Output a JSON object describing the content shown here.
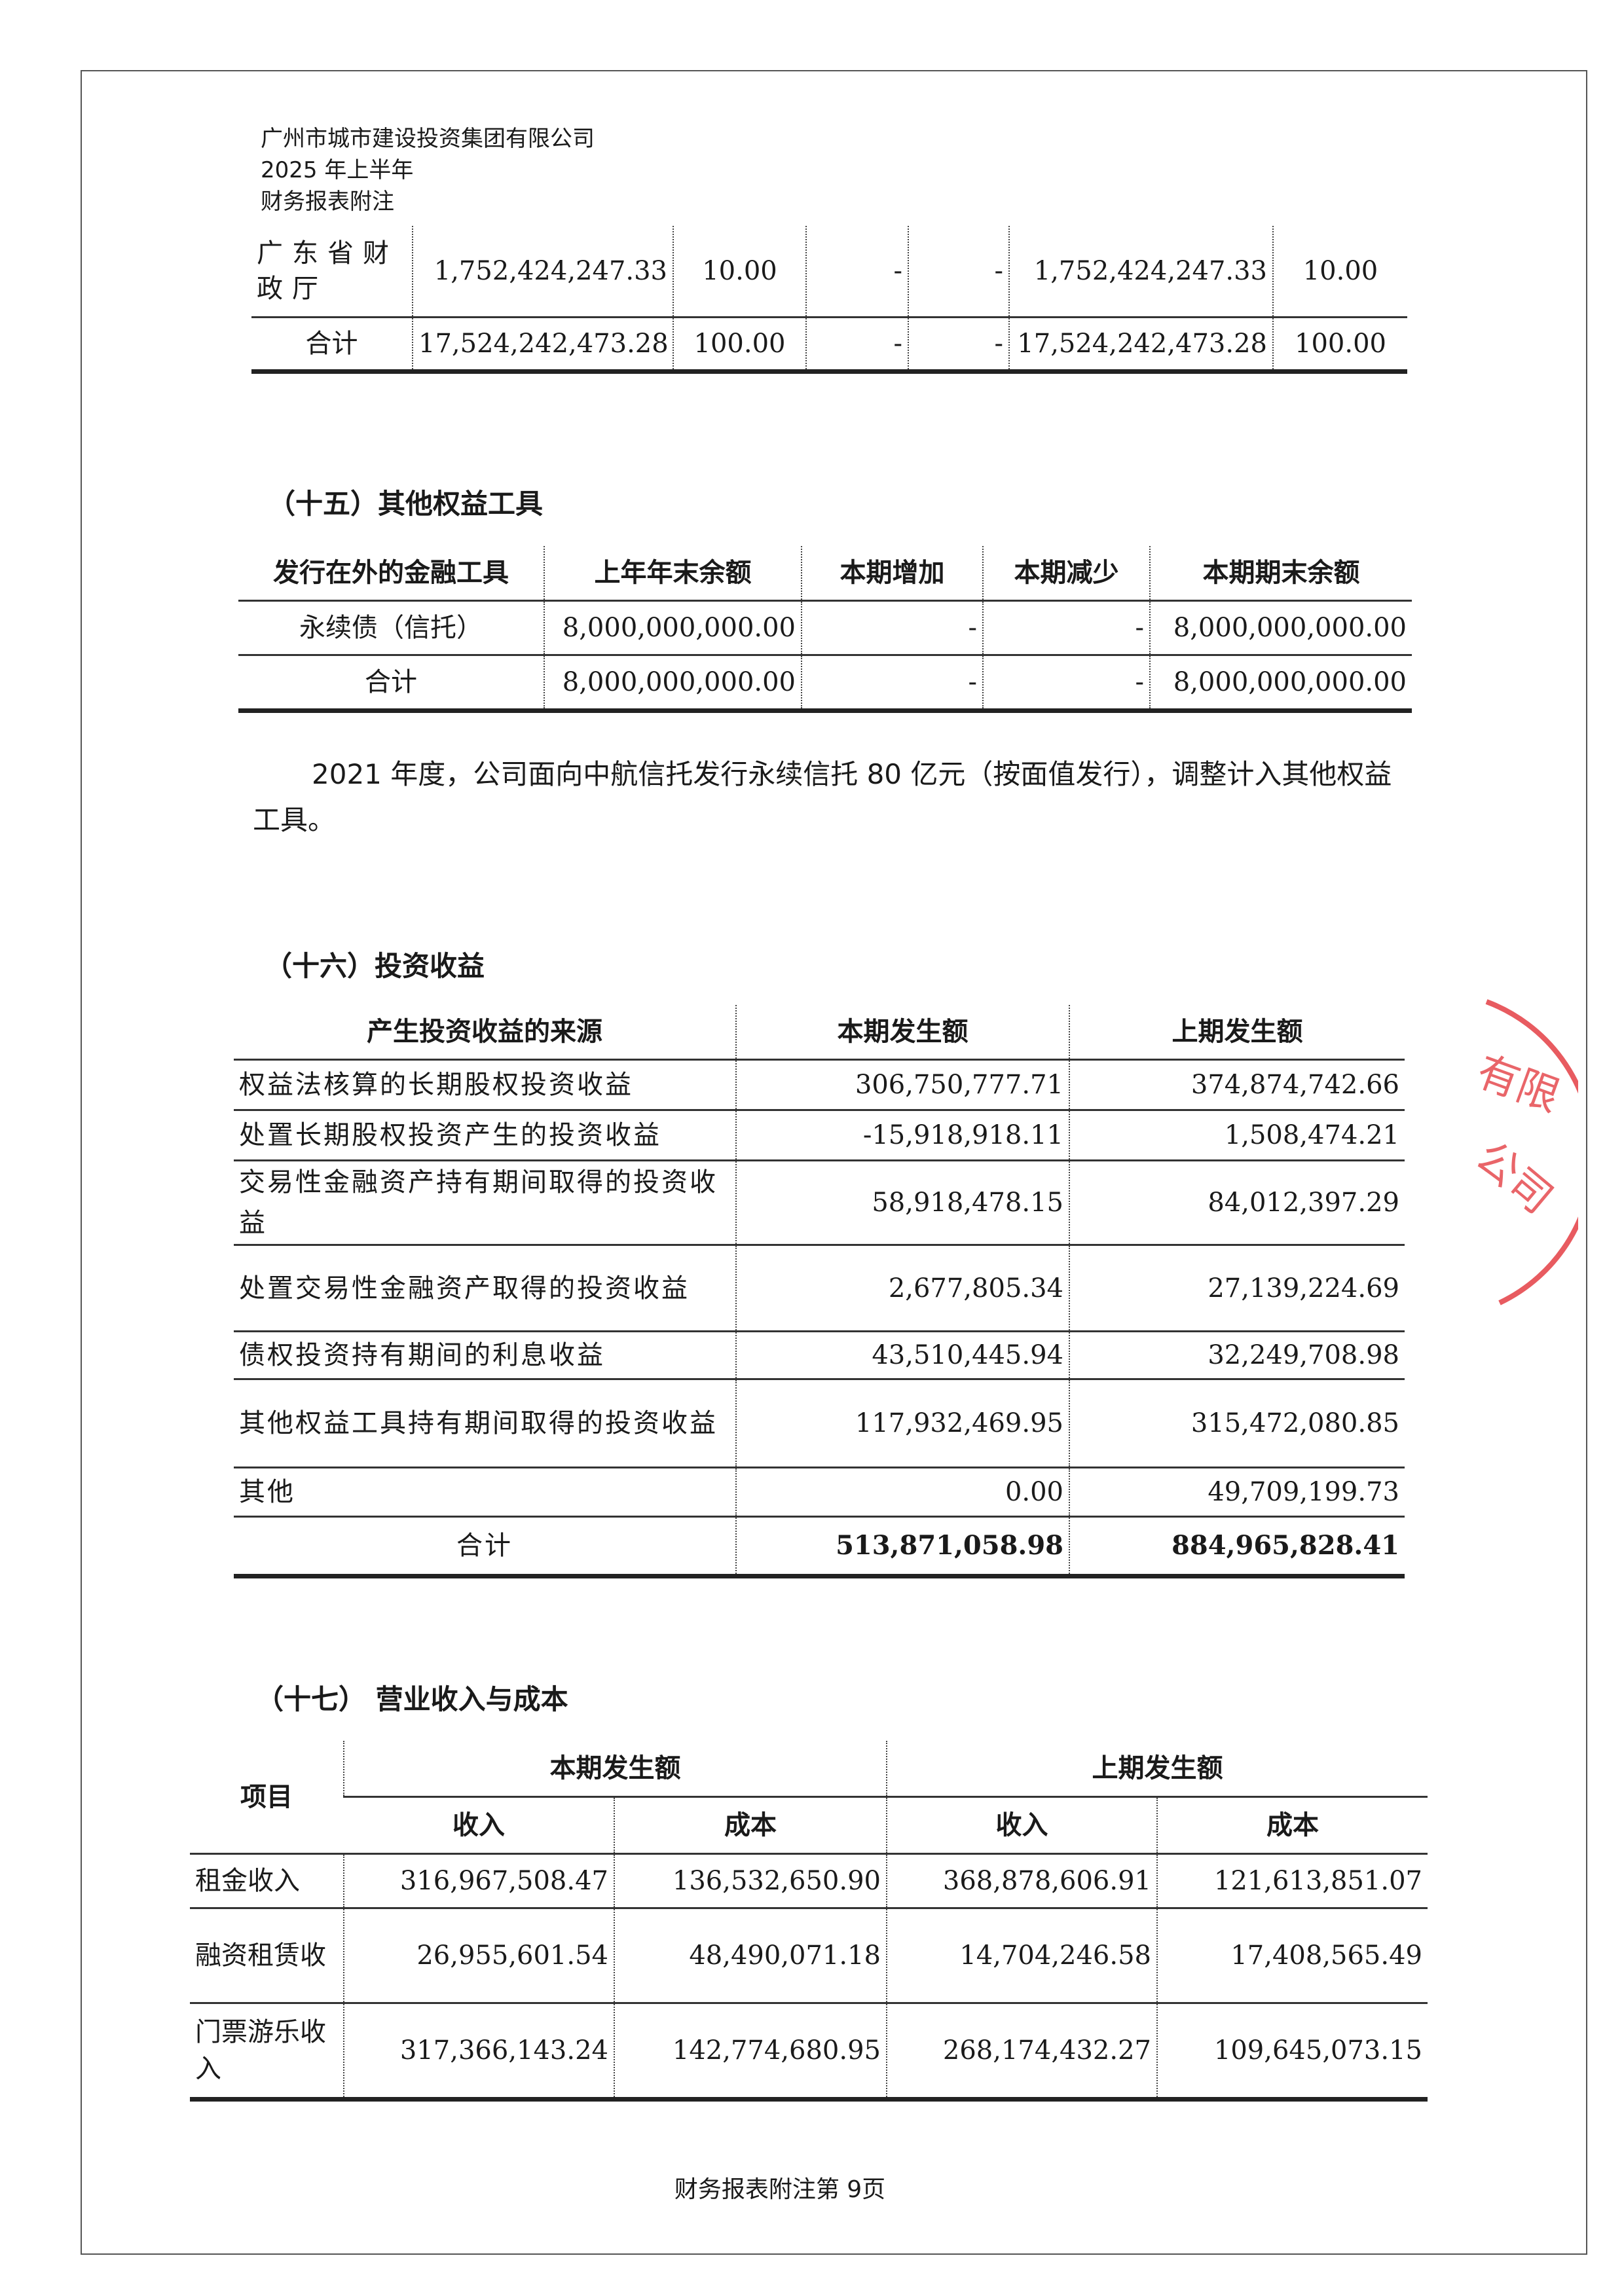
{
  "header": {
    "company": "广州市城市建设投资集团有限公司",
    "period": "2025 年上半年",
    "doc": "财务报表附注"
  },
  "table1": {
    "rows": [
      [
        "广东省财政厅",
        "1,752,424,247.33",
        "10.00",
        "-",
        "-",
        "1,752,424,247.33",
        "10.00"
      ],
      [
        "合计",
        "17,524,242,473.28",
        "100.00",
        "-",
        "-",
        "17,524,242,473.28",
        "100.00"
      ]
    ]
  },
  "sec15": {
    "title": "（十五）其他权益工具",
    "headers": [
      "发行在外的金融工具",
      "上年年末余额",
      "本期增加",
      "本期减少",
      "本期期末余额"
    ],
    "rows": [
      [
        "永续债（信托）",
        "8,000,000,000.00",
        "-",
        "-",
        "8,000,000,000.00"
      ],
      [
        "合计",
        "8,000,000,000.00",
        "-",
        "-",
        "8,000,000,000.00"
      ]
    ],
    "note": "2021 年度，公司面向中航信托发行永续信托 80 亿元（按面值发行），调整计入其他权益工具。"
  },
  "sec16": {
    "title": "（十六）投资收益",
    "headers": [
      "产生投资收益的来源",
      "本期发生额",
      "上期发生额"
    ],
    "rows": [
      [
        "权益法核算的长期股权投资收益",
        "306,750,777.71",
        "374,874,742.66"
      ],
      [
        "处置长期股权投资产生的投资收益",
        "-15,918,918.11",
        "1,508,474.21"
      ],
      [
        "交易性金融资产持有期间取得的投资收益",
        "58,918,478.15",
        "84,012,397.29"
      ],
      [
        "处置交易性金融资产取得的投资收益",
        "2,677,805.34",
        "27,139,224.69"
      ],
      [
        "债权投资持有期间的利息收益",
        "43,510,445.94",
        "32,249,708.98"
      ],
      [
        "其他权益工具持有期间取得的投资收益",
        "117,932,469.95",
        "315,472,080.85"
      ],
      [
        "其他",
        "0.00",
        "49,709,199.73"
      ],
      [
        "合计",
        "513,871,058.98",
        "884,965,828.41"
      ]
    ]
  },
  "sec17": {
    "title": "（十七） 营业收入与成本",
    "item_header": "项目",
    "current": "本期发生额",
    "previous": "上期发生额",
    "income": "收入",
    "cost": "成本",
    "rows": [
      [
        "租金收入",
        "316,967,508.47",
        "136,532,650.90",
        "368,878,606.91",
        "121,613,851.07"
      ],
      [
        "融资租赁收",
        "26,955,601.54",
        "48,490,071.18",
        "14,704,246.58",
        "17,408,565.49"
      ],
      [
        "门票游乐收入",
        "317,366,143.24",
        "142,774,680.95",
        "268,174,432.27",
        "109,645,073.15"
      ]
    ]
  },
  "footer": "财务报表附注第 9页",
  "stamp": {
    "text": "有限公司",
    "color": "#e0242b"
  }
}
